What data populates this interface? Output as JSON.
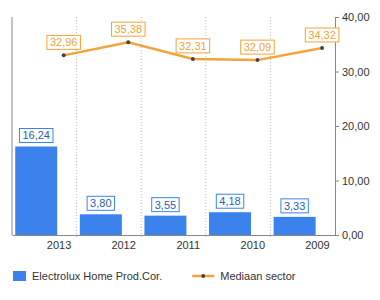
{
  "chart_data": {
    "type": "bar",
    "categories": [
      "2013",
      "2012",
      "2011",
      "2010",
      "2009"
    ],
    "series": [
      {
        "name": "Electrolux Home Prod.Cor.",
        "type": "bar",
        "color": "#3b82ec",
        "values": [
          16.24,
          3.8,
          3.55,
          4.18,
          3.33
        ],
        "value_labels": [
          "16,24",
          "3,80",
          "3,55",
          "4,18",
          "3,33"
        ]
      },
      {
        "name": "Mediaan sector",
        "type": "line",
        "color": "#f2a33a",
        "marker": "circle",
        "values": [
          32.96,
          35.38,
          32.31,
          32.09,
          34.32
        ],
        "value_labels": [
          "32,96",
          "35,38",
          "32,31",
          "32,09",
          "34,32"
        ]
      }
    ],
    "ylim": [
      0,
      40
    ],
    "yticks": [
      {
        "value": 0,
        "label": "0,00"
      },
      {
        "value": 10,
        "label": "10,00"
      },
      {
        "value": 20,
        "label": "20,00"
      },
      {
        "value": 30,
        "label": "30,00"
      },
      {
        "value": 40,
        "label": "40,00"
      }
    ],
    "data_labels": true,
    "legend": "bottom"
  }
}
